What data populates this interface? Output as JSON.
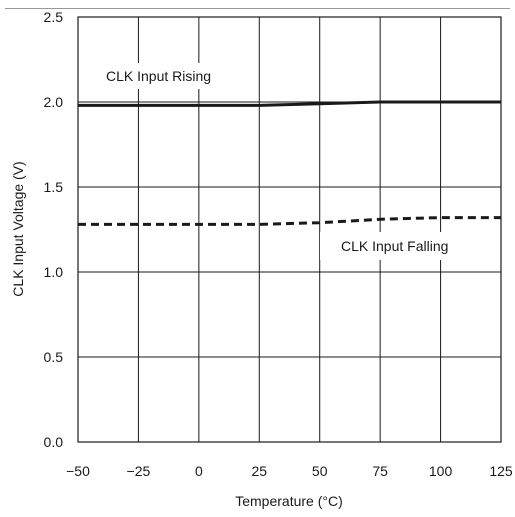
{
  "chart_data": {
    "type": "line",
    "xlabel": "Temperature (°C)",
    "ylabel": "CLK Input Voltage (V)",
    "xlim": [
      -50,
      125
    ],
    "ylim": [
      0,
      2.5
    ],
    "x_ticks": [
      "−50",
      "−25",
      "0",
      "25",
      "50",
      "75",
      "100",
      "125"
    ],
    "y_ticks": [
      "0.0",
      "0.5",
      "1.0",
      "1.5",
      "2.0",
      "2.5"
    ],
    "grid": true,
    "series": [
      {
        "name": "CLK Input Rising",
        "style": "solid",
        "x": [
          -50,
          -25,
          0,
          25,
          50,
          75,
          100,
          125
        ],
        "y": [
          1.98,
          1.98,
          1.98,
          1.98,
          1.99,
          2.0,
          2.0,
          2.0
        ]
      },
      {
        "name": "CLK Input Falling",
        "style": "dashed",
        "x": [
          -50,
          -25,
          0,
          25,
          50,
          75,
          100,
          125
        ],
        "y": [
          1.28,
          1.28,
          1.28,
          1.28,
          1.29,
          1.31,
          1.32,
          1.32
        ]
      }
    ]
  }
}
